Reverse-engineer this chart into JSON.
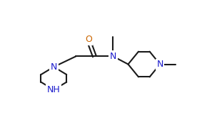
{
  "bg": "#ffffff",
  "bc": "#1a1a1a",
  "nc": "#1a1acc",
  "oc": "#cc6600",
  "lw": 1.5,
  "fs": 9,
  "xlim": [
    -0.5,
    10.5
  ],
  "ylim": [
    -0.5,
    7.0
  ],
  "figw": 2.97,
  "figh": 1.86,
  "dpi": 100
}
